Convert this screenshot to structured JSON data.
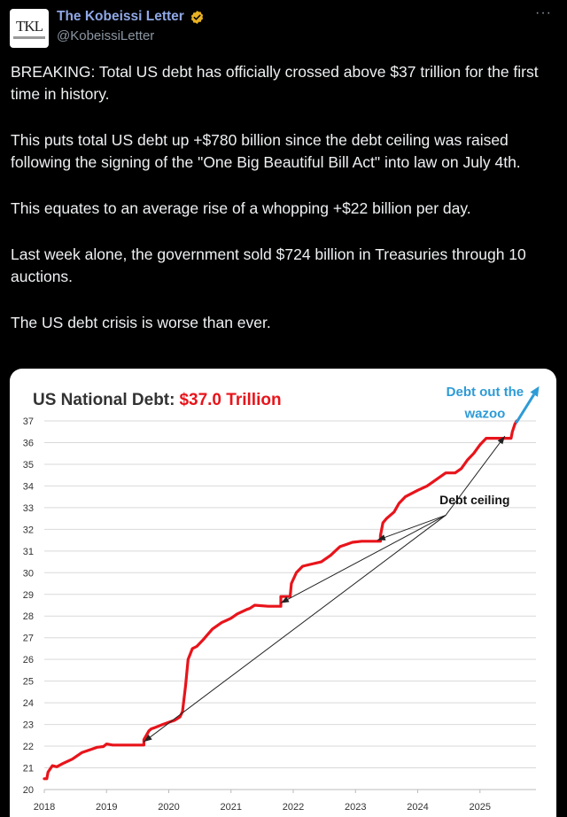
{
  "author": {
    "name": "The Kobeissi Letter",
    "handle": "@KobeissiLetter",
    "avatar_text": "TKL",
    "verified": true,
    "verified_icon": "verified-badge-icon"
  },
  "more_menu": {
    "label": "···",
    "icon": "more-options-icon"
  },
  "tweet": {
    "paragraphs": [
      "BREAKING: Total US debt has officially crossed above $37 trillion for the first time in history.",
      "This puts total US debt up +$780 billion since the debt ceiling was raised following the signing of the \"One Big Beautiful Bill Act\" into law on July 4th.",
      "This equates to an average rise of a whopping +$22 billion per day.",
      "Last week alone, the government sold $724 billion in Treasuries through 10 auctions.",
      "The US debt crisis is worse than ever."
    ]
  },
  "colors": {
    "background": "#000000",
    "author_name": "#8fa8e6",
    "verified_badge": "#e8b123",
    "handle": "#8c96a2",
    "chart_line": "#e8141b",
    "chart_title_value": "#e8141b",
    "callout": "#2e9bd6"
  },
  "chart_data": {
    "type": "line",
    "title": "US National Debt:",
    "title_value": "$37.0 Trillion",
    "xlabel": "",
    "ylabel": "",
    "x_ticks": [
      "2018",
      "2019",
      "2020",
      "2021",
      "2022",
      "2023",
      "2024",
      "2025"
    ],
    "y_ticks": [
      "20",
      "21",
      "22",
      "23",
      "24",
      "25",
      "26",
      "27",
      "28",
      "29",
      "30",
      "31",
      "32",
      "33",
      "34",
      "35",
      "36",
      "37"
    ],
    "xlim": [
      2018,
      2025.9
    ],
    "ylim": [
      20,
      37
    ],
    "grid": "horizontal",
    "series": [
      {
        "x": [
          2018.0,
          2018.04,
          2018.06,
          2018.13,
          2018.2,
          2018.3,
          2018.45,
          2018.6,
          2018.75,
          2018.85,
          2018.95,
          2019.0,
          2019.1,
          2019.15,
          2019.6,
          2019.6,
          2019.68,
          2019.72,
          2019.77,
          2019.9,
          2020.0,
          2020.1,
          2020.18,
          2020.22,
          2020.27,
          2020.31,
          2020.38,
          2020.45,
          2020.55,
          2020.7,
          2020.85,
          2021.0,
          2021.1,
          2021.25,
          2021.3,
          2021.38,
          2021.6,
          2021.8,
          2021.8,
          2021.95,
          2021.97,
          2022.05,
          2022.15,
          2022.3,
          2022.45,
          2022.6,
          2022.75,
          2022.85,
          2022.95,
          2023.1,
          2023.4,
          2023.4,
          2023.44,
          2023.5,
          2023.62,
          2023.7,
          2023.8,
          2024.0,
          2024.15,
          2024.3,
          2024.45,
          2024.6,
          2024.7,
          2024.8,
          2024.9,
          2025.0,
          2025.1,
          2025.2,
          2025.3,
          2025.5,
          2025.52,
          2025.56,
          2025.59
        ],
        "values": [
          20.5,
          20.5,
          20.8,
          21.1,
          21.05,
          21.2,
          21.4,
          21.7,
          21.85,
          21.95,
          21.98,
          22.1,
          22.05,
          22.05,
          22.05,
          22.3,
          22.7,
          22.8,
          22.85,
          23.0,
          23.1,
          23.2,
          23.35,
          23.6,
          24.8,
          26.0,
          26.5,
          26.6,
          26.9,
          27.4,
          27.7,
          27.9,
          28.1,
          28.3,
          28.35,
          28.5,
          28.45,
          28.45,
          28.9,
          28.9,
          29.5,
          30.0,
          30.3,
          30.4,
          30.5,
          30.8,
          31.2,
          31.3,
          31.4,
          31.45,
          31.45,
          31.7,
          32.3,
          32.5,
          32.8,
          33.2,
          33.5,
          33.8,
          34.0,
          34.3,
          34.6,
          34.6,
          34.8,
          35.2,
          35.5,
          35.9,
          36.2,
          36.2,
          36.2,
          36.2,
          36.5,
          36.85,
          37.0
        ]
      }
    ],
    "annotations": [
      {
        "text": "Debt ceiling",
        "pointer_targets": [
          [
            2019.6,
            22.2
          ],
          [
            2021.8,
            28.6
          ],
          [
            2023.35,
            31.5
          ],
          [
            2025.4,
            36.3
          ]
        ]
      },
      {
        "text_lines": [
          "Debt out the",
          "wazoo"
        ],
        "color": "callout",
        "arrow_from": [
          2025.58,
          36.9
        ],
        "arrow_to": [
          2025.95,
          38.6
        ]
      }
    ]
  }
}
